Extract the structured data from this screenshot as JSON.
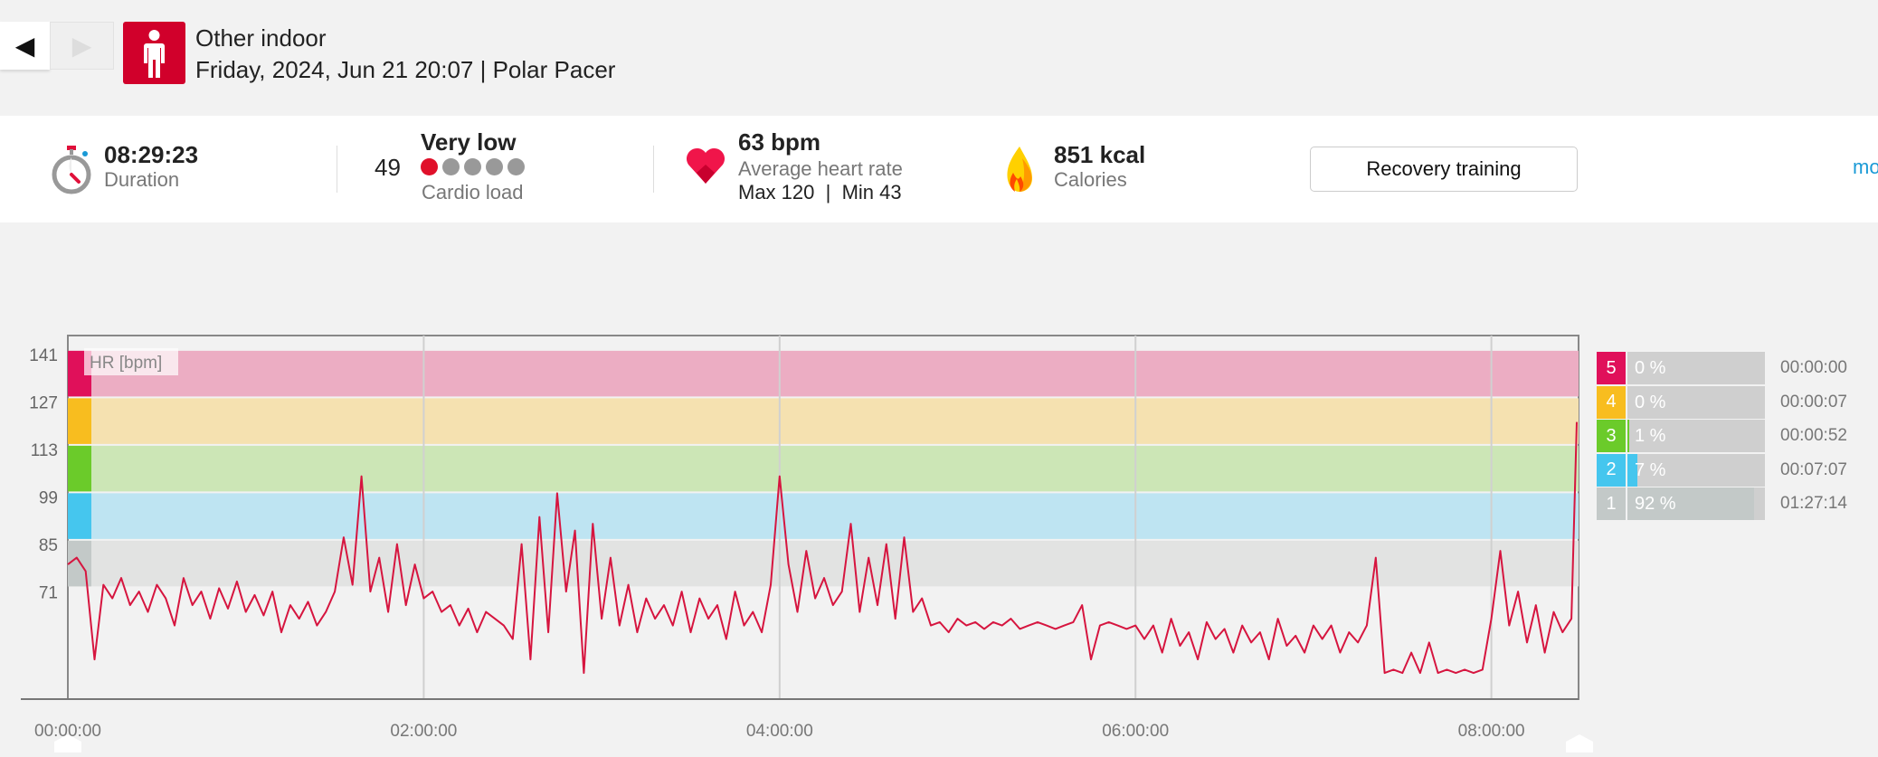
{
  "header": {
    "prev_icon": "triangle-left",
    "next_icon": "triangle-right",
    "prev_glyph": "◀",
    "next_glyph": "▶",
    "sport": "Other indoor",
    "subtitle": "Friday, 2024, Jun 21 20:07 | Polar Pacer"
  },
  "stats": {
    "duration": {
      "value": "08:29:23",
      "label": "Duration"
    },
    "cardio": {
      "score": "49",
      "level": "Very low",
      "label": "Cardio load",
      "dots_filled": 1,
      "dots_total": 5
    },
    "heart": {
      "value": "63 bpm",
      "label": "Average heart rate",
      "max": "Max 120",
      "sep": "|",
      "min": "Min 43"
    },
    "calories": {
      "value": "851 kcal",
      "label": "Calories"
    },
    "benefit_button": "Recovery training",
    "more_link": "mo"
  },
  "colors": {
    "accent": "#d1002b",
    "line": "#d6153f",
    "link": "#1a9ad6"
  },
  "chart_data": {
    "type": "line",
    "ylabel": "HR [bpm]",
    "xlabel": "",
    "ylim": [
      38.3,
      145.5
    ],
    "xlim_hours": [
      0,
      8.49
    ],
    "y_ticks": [
      141,
      127,
      113,
      99,
      85,
      71
    ],
    "x_ticks": [
      {
        "h": 0,
        "label": "00:00:00"
      },
      {
        "h": 2,
        "label": "02:00:00"
      },
      {
        "h": 4,
        "label": "04:00:00"
      },
      {
        "h": 6,
        "label": "06:00:00"
      },
      {
        "h": 8,
        "label": "08:00:00"
      }
    ],
    "grid": true,
    "sample_interval_min": 3,
    "series": [
      {
        "name": "Heart rate",
        "values": [
          78,
          80,
          76,
          50,
          72,
          68,
          74,
          66,
          70,
          64,
          72,
          68,
          60,
          74,
          66,
          70,
          62,
          71,
          65,
          73,
          64,
          69,
          63,
          70,
          58,
          66,
          62,
          67,
          60,
          64,
          70,
          86,
          72,
          104,
          70,
          80,
          64,
          84,
          66,
          78,
          68,
          70,
          64,
          66,
          60,
          65,
          58,
          64,
          62,
          60,
          56,
          84,
          50,
          92,
          58,
          99,
          70,
          88,
          46,
          90,
          62,
          80,
          60,
          72,
          58,
          68,
          62,
          66,
          60,
          70,
          58,
          68,
          62,
          66,
          56,
          70,
          60,
          64,
          58,
          72,
          104,
          78,
          64,
          82,
          68,
          74,
          66,
          70,
          90,
          64,
          80,
          66,
          84,
          62,
          86,
          64,
          68,
          60,
          61,
          58,
          62,
          60,
          61,
          59,
          61,
          60,
          62,
          59,
          60,
          61,
          60,
          59,
          60,
          61,
          66,
          50,
          60,
          61,
          60,
          59,
          60,
          56,
          60,
          52,
          62,
          54,
          58,
          50,
          61,
          56,
          59,
          52,
          60,
          55,
          58,
          50,
          62,
          54,
          57,
          52,
          60,
          56,
          60,
          52,
          58,
          55,
          60,
          80,
          46,
          47,
          46,
          52,
          46,
          55,
          46,
          47,
          46,
          47,
          46,
          47,
          62,
          82,
          60,
          70,
          55,
          66,
          52,
          64,
          58,
          62,
          120
        ]
      }
    ],
    "zones": [
      {
        "zone": "5",
        "lower": 127,
        "upper": 141,
        "band": "#ecadc3",
        "solid": "#e0105a",
        "percent": "0 %",
        "fraction": 0,
        "time": "00:00:00"
      },
      {
        "zone": "4",
        "lower": 113,
        "upper": 127,
        "band": "#f5e1b0",
        "solid": "#f8bd1f",
        "percent": "0 %",
        "fraction": 0,
        "time": "00:00:07"
      },
      {
        "zone": "3",
        "lower": 99,
        "upper": 113,
        "band": "#cce6b6",
        "solid": "#6bcb2a",
        "percent": "1 %",
        "fraction": 0.01,
        "time": "00:00:52"
      },
      {
        "zone": "2",
        "lower": 85,
        "upper": 99,
        "band": "#bee4f2",
        "solid": "#45c6ee",
        "percent": "7 %",
        "fraction": 0.07,
        "time": "00:07:07"
      },
      {
        "zone": "1",
        "lower": 71,
        "upper": 85,
        "band": "#e2e3e2",
        "solid": "#c3c9c8",
        "percent": "92 %",
        "fraction": 0.92,
        "time": "01:27:14"
      }
    ]
  }
}
